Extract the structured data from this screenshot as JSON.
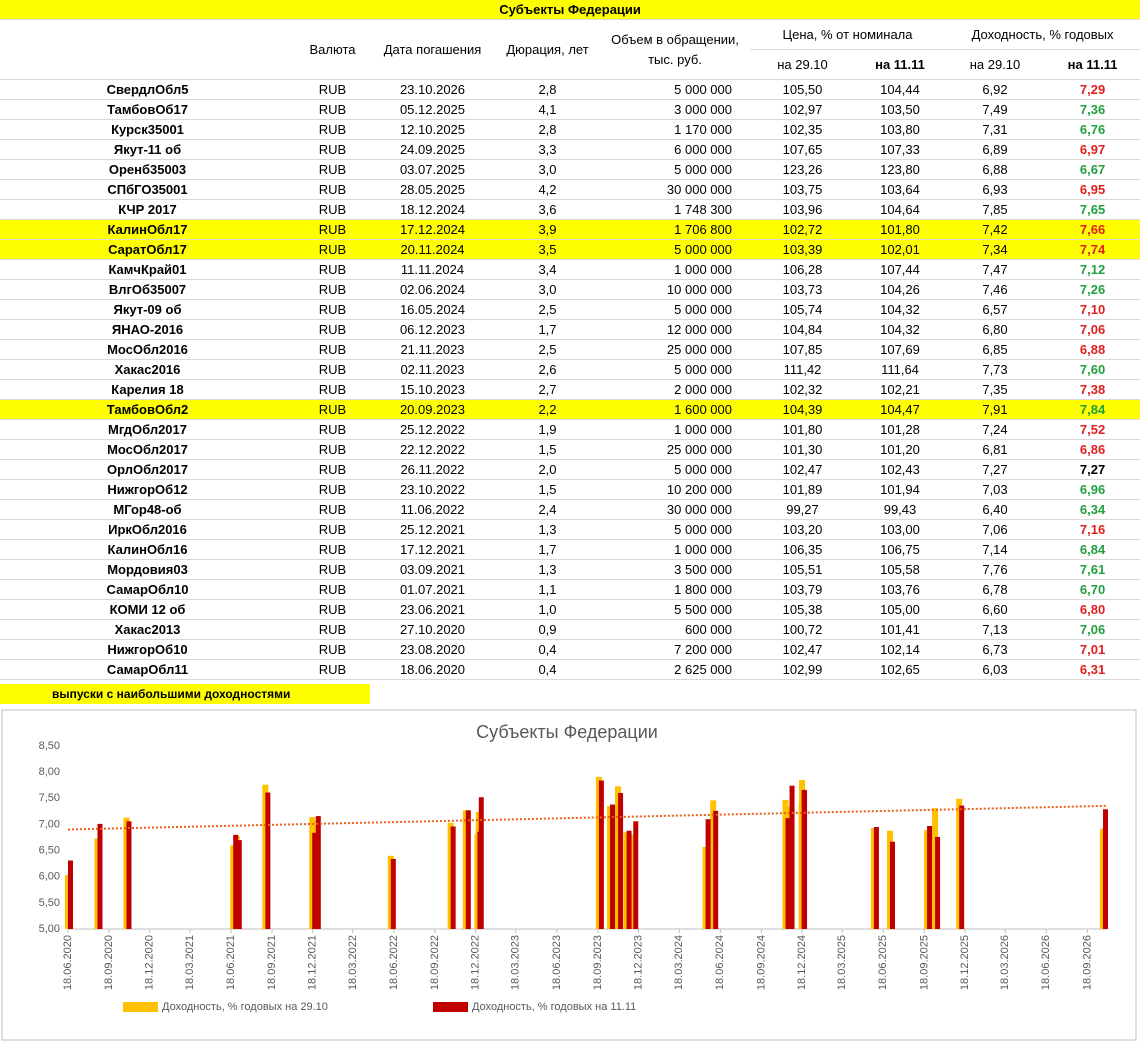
{
  "table": {
    "title": "Субъекты Федерации",
    "columns": {
      "currency": "Валюта",
      "maturity": "Дата погашения",
      "duration": "Дюрация, лет",
      "volume": "Объем в обращении, тыс. руб.",
      "price": "Цена, % от номинала",
      "yield": "Доходность, % годовых",
      "price_prev": "на 29.10",
      "price_cur": "на 11.11",
      "yield_prev": "на 29.10",
      "yield_cur": "на 11.11"
    },
    "rows": [
      {
        "cells": [
          "СвердлОбл5",
          "RUB",
          "23.10.2026",
          "2,8",
          "5 000 000",
          "105,50",
          "104,44",
          "6,92",
          "7,29"
        ],
        "yield_color": "#e0201f"
      },
      {
        "cells": [
          "ТамбовОб17",
          "RUB",
          "05.12.2025",
          "4,1",
          "3 000 000",
          "102,97",
          "103,50",
          "7,49",
          "7,36"
        ],
        "yield_color": "#20a040"
      },
      {
        "cells": [
          "Курск35001",
          "RUB",
          "12.10.2025",
          "2,8",
          "1 170 000",
          "102,35",
          "103,80",
          "7,31",
          "6,76"
        ],
        "yield_color": "#20a040"
      },
      {
        "cells": [
          "Якут-11 об",
          "RUB",
          "24.09.2025",
          "3,3",
          "6 000 000",
          "107,65",
          "107,33",
          "6,89",
          "6,97"
        ],
        "yield_color": "#e0201f"
      },
      {
        "cells": [
          "Оренб35003",
          "RUB",
          "03.07.2025",
          "3,0",
          "5 000 000",
          "123,26",
          "123,80",
          "6,88",
          "6,67"
        ],
        "yield_color": "#20a040"
      },
      {
        "cells": [
          "СПбГО35001",
          "RUB",
          "28.05.2025",
          "4,2",
          "30 000 000",
          "103,75",
          "103,64",
          "6,93",
          "6,95"
        ],
        "yield_color": "#e0201f"
      },
      {
        "cells": [
          "КЧР 2017",
          "RUB",
          "18.12.2024",
          "3,6",
          "1 748 300",
          "103,96",
          "104,64",
          "7,85",
          "7,65"
        ],
        "yield_color": "#20a040"
      },
      {
        "cells": [
          "КалинОбл17",
          "RUB",
          "17.12.2024",
          "3,9",
          "1 706 800",
          "102,72",
          "101,80",
          "7,42",
          "7,66"
        ],
        "yield_color": "#e0201f",
        "fill": "#ffff00"
      },
      {
        "cells": [
          "СаратОбл17",
          "RUB",
          "20.11.2024",
          "3,5",
          "5 000 000",
          "103,39",
          "102,01",
          "7,34",
          "7,74"
        ],
        "yield_color": "#e0201f",
        "fill": "#ffff00"
      },
      {
        "cells": [
          "КамчКрай01",
          "RUB",
          "11.11.2024",
          "3,4",
          "1 000 000",
          "106,28",
          "107,44",
          "7,47",
          "7,12"
        ],
        "yield_color": "#20a040"
      },
      {
        "cells": [
          "ВлгОб35007",
          "RUB",
          "02.06.2024",
          "3,0",
          "10 000 000",
          "103,73",
          "104,26",
          "7,46",
          "7,26"
        ],
        "yield_color": "#20a040"
      },
      {
        "cells": [
          "Якут-09 об",
          "RUB",
          "16.05.2024",
          "2,5",
          "5 000 000",
          "105,74",
          "104,32",
          "6,57",
          "7,10"
        ],
        "yield_color": "#e0201f"
      },
      {
        "cells": [
          "ЯНАО-2016",
          "RUB",
          "06.12.2023",
          "1,7",
          "12 000 000",
          "104,84",
          "104,32",
          "6,80",
          "7,06"
        ],
        "yield_color": "#e0201f"
      },
      {
        "cells": [
          "МосОбл2016",
          "RUB",
          "21.11.2023",
          "2,5",
          "25 000 000",
          "107,85",
          "107,69",
          "6,85",
          "6,88"
        ],
        "yield_color": "#e0201f"
      },
      {
        "cells": [
          "Хакас2016",
          "RUB",
          "02.11.2023",
          "2,6",
          "5 000 000",
          "111,42",
          "111,64",
          "7,73",
          "7,60"
        ],
        "yield_color": "#20a040"
      },
      {
        "cells": [
          "Карелия 18",
          "RUB",
          "15.10.2023",
          "2,7",
          "2 000 000",
          "102,32",
          "102,21",
          "7,35",
          "7,38"
        ],
        "yield_color": "#e0201f"
      },
      {
        "cells": [
          "ТамбовОбл2",
          "RUB",
          "20.09.2023",
          "2,2",
          "1 600 000",
          "104,39",
          "104,47",
          "7,91",
          "7,84"
        ],
        "yield_color": "#20a040",
        "fill": "#ffff00"
      },
      {
        "cells": [
          "МгдОбл2017",
          "RUB",
          "25.12.2022",
          "1,9",
          "1 000 000",
          "101,80",
          "101,28",
          "7,24",
          "7,52"
        ],
        "yield_color": "#e0201f"
      },
      {
        "cells": [
          "МосОбл2017",
          "RUB",
          "22.12.2022",
          "1,5",
          "25 000 000",
          "101,30",
          "101,20",
          "6,81",
          "6,86"
        ],
        "yield_color": "#e0201f"
      },
      {
        "cells": [
          "ОрлОбл2017",
          "RUB",
          "26.11.2022",
          "2,0",
          "5 000 000",
          "102,47",
          "102,43",
          "7,27",
          "7,27"
        ],
        "yield_color": "#000000"
      },
      {
        "cells": [
          "НижгорОб12",
          "RUB",
          "23.10.2022",
          "1,5",
          "10 200 000",
          "101,89",
          "101,94",
          "7,03",
          "6,96"
        ],
        "yield_color": "#20a040"
      },
      {
        "cells": [
          "МГор48-об",
          "RUB",
          "11.06.2022",
          "2,4",
          "30 000 000",
          "99,27",
          "99,43",
          "6,40",
          "6,34"
        ],
        "yield_color": "#20a040"
      },
      {
        "cells": [
          "ИркОбл2016",
          "RUB",
          "25.12.2021",
          "1,3",
          "5 000 000",
          "103,20",
          "103,00",
          "7,06",
          "7,16"
        ],
        "yield_color": "#e0201f"
      },
      {
        "cells": [
          "КалинОбл16",
          "RUB",
          "17.12.2021",
          "1,7",
          "1 000 000",
          "106,35",
          "106,75",
          "7,14",
          "6,84"
        ],
        "yield_color": "#20a040"
      },
      {
        "cells": [
          "Мордовия03",
          "RUB",
          "03.09.2021",
          "1,3",
          "3 500 000",
          "105,51",
          "105,58",
          "7,76",
          "7,61"
        ],
        "yield_color": "#20a040"
      },
      {
        "cells": [
          "СамарОбл10",
          "RUB",
          "01.07.2021",
          "1,1",
          "1 800 000",
          "103,79",
          "103,76",
          "6,78",
          "6,70"
        ],
        "yield_color": "#20a040"
      },
      {
        "cells": [
          "КОМИ 12 об",
          "RUB",
          "23.06.2021",
          "1,0",
          "5 500 000",
          "105,38",
          "105,00",
          "6,60",
          "6,80"
        ],
        "yield_color": "#e0201f"
      },
      {
        "cells": [
          "Хакас2013",
          "RUB",
          "27.10.2020",
          "0,9",
          "600 000",
          "100,72",
          "101,41",
          "7,13",
          "7,06"
        ],
        "yield_color": "#20a040"
      },
      {
        "cells": [
          "НижгорОб10",
          "RUB",
          "23.08.2020",
          "0,4",
          "7 200 000",
          "102,47",
          "102,14",
          "6,73",
          "7,01"
        ],
        "yield_color": "#e0201f"
      },
      {
        "cells": [
          "СамарОбл11",
          "RUB",
          "18.06.2020",
          "0,4",
          "2 625 000",
          "102,99",
          "102,65",
          "6,03",
          "6,31"
        ],
        "yield_color": "#e0201f"
      }
    ]
  },
  "note": "выпуски с наибольшими доходностями",
  "chart_data": {
    "type": "bar",
    "title": "Субъекты Федерации",
    "x": [
      "23.10.2026",
      "05.12.2025",
      "12.10.2025",
      "24.09.2025",
      "03.07.2025",
      "28.05.2025",
      "18.12.2024",
      "17.12.2024",
      "20.11.2024",
      "11.11.2024",
      "02.06.2024",
      "16.05.2024",
      "06.12.2023",
      "21.11.2023",
      "02.11.2023",
      "15.10.2023",
      "20.09.2023",
      "25.12.2022",
      "22.12.2022",
      "26.11.2022",
      "23.10.2022",
      "11.06.2022",
      "25.12.2021",
      "17.12.2021",
      "03.09.2021",
      "01.07.2021",
      "23.06.2021",
      "27.10.2020",
      "23.08.2020",
      "18.06.2020"
    ],
    "series": [
      {
        "name": "Доходность, % годовых на 29.10",
        "color": "#ffc000",
        "values": [
          6.92,
          7.49,
          7.31,
          6.89,
          6.88,
          6.93,
          7.85,
          7.42,
          7.34,
          7.47,
          7.46,
          6.57,
          6.8,
          6.85,
          7.73,
          7.35,
          7.91,
          7.24,
          6.81,
          7.27,
          7.03,
          6.4,
          7.06,
          7.14,
          7.76,
          6.78,
          6.6,
          7.13,
          6.73,
          6.03
        ]
      },
      {
        "name": "Доходность, % годовых на 11.11",
        "color": "#c00000",
        "values": [
          7.29,
          7.36,
          6.76,
          6.97,
          6.67,
          6.95,
          7.65,
          7.66,
          7.74,
          7.12,
          7.26,
          7.1,
          7.06,
          6.88,
          7.6,
          7.38,
          7.84,
          7.52,
          6.86,
          7.27,
          6.96,
          6.34,
          7.16,
          6.84,
          7.61,
          6.7,
          6.8,
          7.06,
          7.01,
          6.31
        ]
      }
    ],
    "xlim": [
      "18.06.2020",
      "01.11.2026"
    ],
    "xticks": [
      "18.06.2020",
      "18.09.2020",
      "18.12.2020",
      "18.03.2021",
      "18.06.2021",
      "18.09.2021",
      "18.12.2021",
      "18.03.2022",
      "18.06.2022",
      "18.09.2022",
      "18.12.2022",
      "18.03.2023",
      "18.06.2023",
      "18.09.2023",
      "18.12.2023",
      "18.03.2024",
      "18.06.2024",
      "18.09.2024",
      "18.12.2024",
      "18.03.2025",
      "18.06.2025",
      "18.09.2025",
      "18.12.2025",
      "18.03.2026",
      "18.06.2026",
      "18.09.2026"
    ],
    "ylim": [
      5,
      8.5
    ],
    "yticks": [
      {
        "value": 5,
        "label": "5,00"
      },
      {
        "value": 5.5,
        "label": "5,50"
      },
      {
        "value": 6,
        "label": "6,00"
      },
      {
        "value": 6.5,
        "label": "6,50"
      },
      {
        "value": 7,
        "label": "7,00"
      },
      {
        "value": 7.5,
        "label": "7,50"
      },
      {
        "value": 8,
        "label": "8,00"
      },
      {
        "value": 8.5,
        "label": "8,50"
      }
    ],
    "grid": false,
    "legend": "bottom",
    "trendline_color": "#e8601a"
  }
}
